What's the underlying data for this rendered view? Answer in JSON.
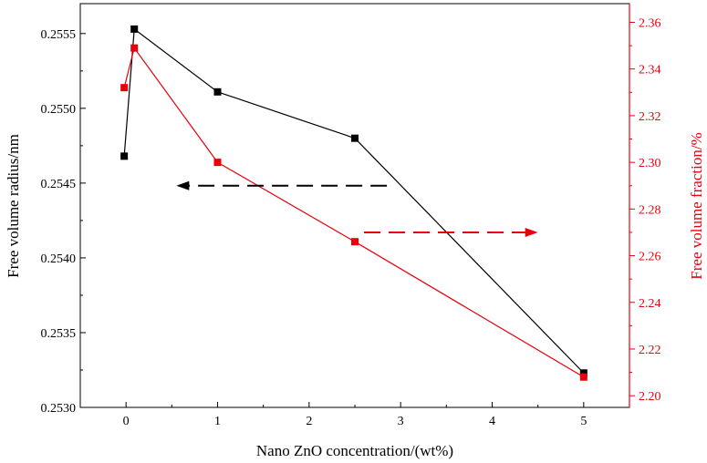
{
  "chart_data": {
    "type": "line",
    "title": "",
    "xlabel": "Nano ZnO concentration/(wt%)",
    "ylabel_left": "Free volume radius/nm",
    "ylabel_right": "Free volume fraction/%",
    "xlim": [
      -0.5,
      5.5
    ],
    "ylim_left": [
      0.253,
      0.2557
    ],
    "ylim_right": [
      2.195,
      2.368
    ],
    "x_ticks": [
      0,
      1,
      2,
      3,
      4,
      5
    ],
    "x_tick_labels": [
      "0",
      "1",
      "2",
      "3",
      "4",
      "5"
    ],
    "y_left_ticks": [
      0.253,
      0.2535,
      0.254,
      0.2545,
      0.255,
      0.2555
    ],
    "y_left_tick_labels": [
      "0.2530",
      "0.2535",
      "0.2540",
      "0.2545",
      "0.2550",
      "0.2555"
    ],
    "y_right_ticks": [
      2.2,
      2.22,
      2.24,
      2.26,
      2.28,
      2.3,
      2.32,
      2.34,
      2.36
    ],
    "y_right_tick_labels": [
      "2.20",
      "2.22",
      "2.24",
      "2.26",
      "2.28",
      "2.30",
      "2.32",
      "2.34",
      "2.36"
    ],
    "series": [
      {
        "name": "Free volume radius",
        "axis": "left",
        "color": "#000000",
        "x": [
          -0.02,
          0.09,
          1.0,
          2.5,
          5.0
        ],
        "y": [
          0.25468,
          0.25553,
          0.25511,
          0.2548,
          0.25323
        ]
      },
      {
        "name": "Free volume fraction",
        "axis": "right",
        "color": "#e8000b",
        "x": [
          -0.02,
          0.09,
          1.0,
          2.5,
          5.0
        ],
        "y": [
          2.332,
          2.349,
          2.3,
          2.266,
          2.208
        ]
      }
    ],
    "annotations": [
      {
        "type": "dashed-arrow",
        "direction": "left",
        "color": "#000000",
        "from_x": 2.85,
        "to_x": 0.55,
        "y": 2.29,
        "y_axis": "right"
      },
      {
        "type": "dashed-arrow",
        "direction": "right",
        "color": "#e8000b",
        "from_x": 2.6,
        "to_x": 4.5,
        "y": 2.27,
        "y_axis": "right"
      }
    ],
    "grid": false,
    "legend": "none"
  }
}
